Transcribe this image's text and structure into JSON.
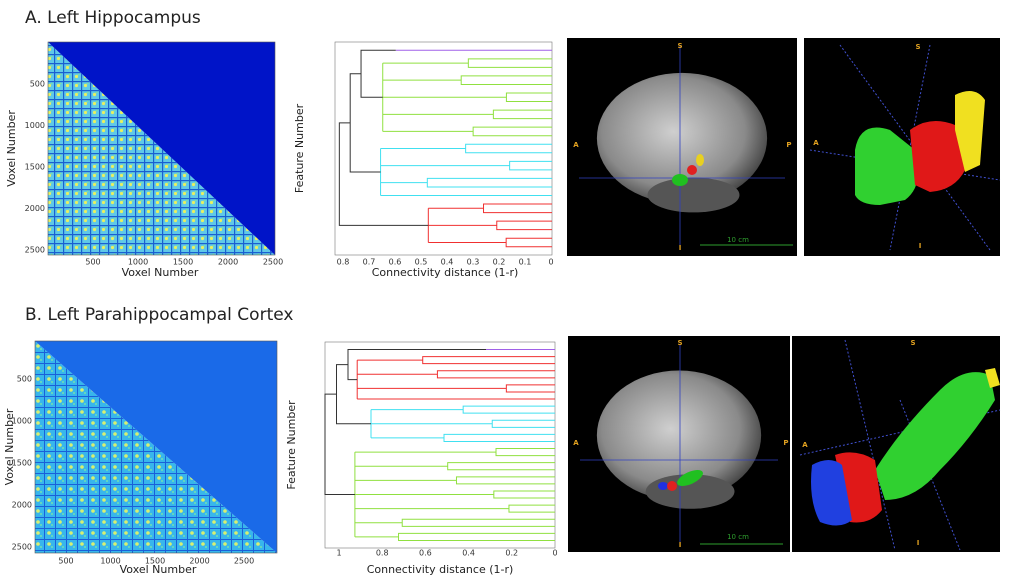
{
  "panels": [
    {
      "title": "A. Left Hippocampus",
      "matrix": {
        "x_label": "Voxel Number",
        "y_label": "Voxel Number",
        "xticks": [
          500,
          1000,
          1500,
          2000,
          2500
        ],
        "yticks": [
          500,
          1000,
          1500,
          2000,
          2500
        ]
      },
      "dendrogram": {
        "x_label": "Connectivity distance (1-r)",
        "y_label": "Feature Number",
        "xticks": [
          0.8,
          0.7,
          0.6,
          0.5,
          0.4,
          0.3,
          0.2,
          0.1,
          0
        ]
      },
      "slice": {
        "labels": [
          "S",
          "A",
          "P",
          "I"
        ],
        "scale": "10 cm"
      },
      "render": {
        "labels": [
          "S",
          "A",
          "I"
        ]
      }
    },
    {
      "title": "B. Left Parahippocampal Cortex",
      "matrix": {
        "x_label": "Voxel Number",
        "y_label": "Voxel Number",
        "xticks": [
          500,
          1000,
          1500,
          2000,
          2500
        ],
        "yticks": [
          500,
          1000,
          1500,
          2000,
          2500
        ]
      },
      "dendrogram": {
        "x_label": "Connectivity distance (1-r)",
        "y_label": "Feature Number",
        "xticks": [
          1,
          0.8,
          0.6,
          0.4,
          0.2,
          0
        ]
      },
      "slice": {
        "labels": [
          "S",
          "A",
          "P",
          "I"
        ],
        "scale": "10 cm"
      },
      "render": {
        "labels": [
          "S",
          "A",
          "I"
        ]
      }
    }
  ]
}
